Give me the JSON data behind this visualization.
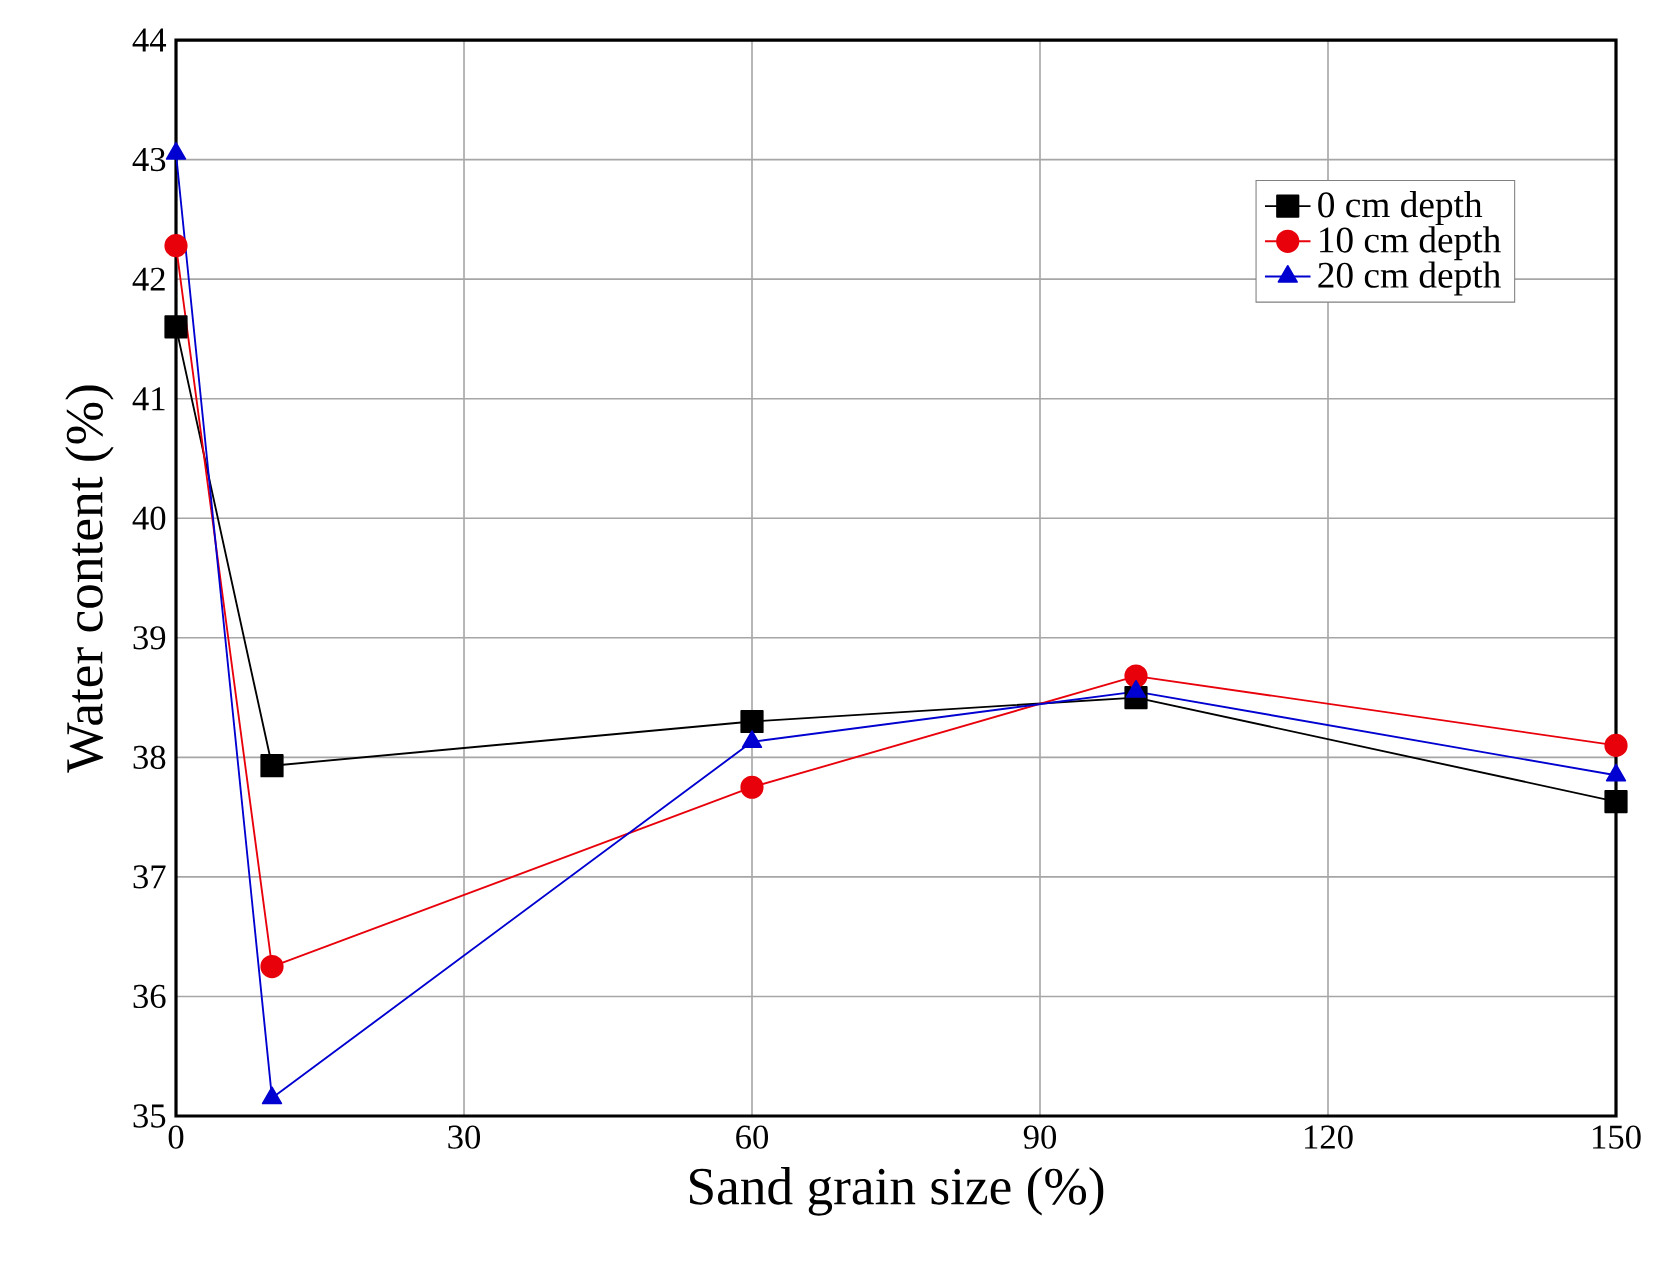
{
  "chart_data": {
    "type": "line",
    "xlabel": "Sand grain size (%)",
    "ylabel": "Water content (%)",
    "x": [
      0,
      10,
      60,
      100,
      150
    ],
    "series": [
      {
        "name": "0 cm depth",
        "color": "#000000",
        "marker": "square",
        "values": [
          41.6,
          37.93,
          38.3,
          38.5,
          37.63
        ]
      },
      {
        "name": "10 cm depth",
        "color": "#e8000b",
        "marker": "circle",
        "values": [
          42.28,
          36.25,
          37.75,
          38.68,
          38.1
        ]
      },
      {
        "name": "20 cm depth",
        "color": "#0000d0",
        "marker": "triangle",
        "values": [
          43.05,
          35.15,
          38.13,
          38.55,
          37.85
        ]
      }
    ],
    "xlim": [
      0,
      150
    ],
    "xticks": [
      0,
      30,
      60,
      90,
      120,
      150
    ],
    "ylim": [
      35,
      44
    ],
    "yticks": [
      35,
      36,
      37,
      38,
      39,
      40,
      41,
      42,
      43,
      44
    ],
    "grid": true,
    "legend": "top right"
  }
}
